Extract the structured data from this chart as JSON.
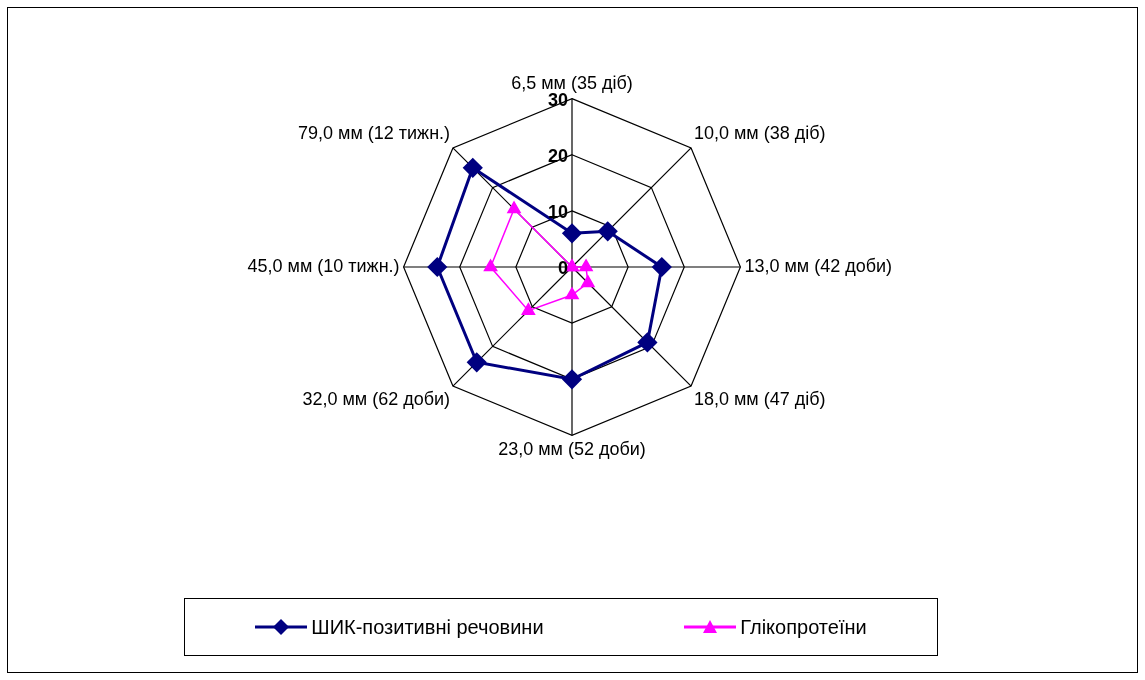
{
  "chart_data": {
    "type": "radar",
    "categories": [
      "6,5 мм (35 діб)",
      "10,0 мм (38 діб)",
      "13,0 мм (42 доби)",
      "18,0 мм (47 діб)",
      "23,0 мм (52 доби)",
      "32,0 мм (62 доби)",
      "45,0 мм (10 тижн.)",
      "79,0 мм (12 тижн.)"
    ],
    "series": [
      {
        "name": "ШИК-позитивні речовини",
        "color": "#000080",
        "marker": "diamond",
        "values": [
          6,
          9,
          16,
          19,
          20,
          24,
          24,
          25
        ]
      },
      {
        "name": "Глікопротеїни",
        "color": "#ff00ff",
        "marker": "triangle",
        "values": [
          0,
          0,
          2.5,
          4,
          5,
          11,
          14.5,
          14.6
        ]
      }
    ],
    "ylim": [
      0,
      30
    ],
    "yticks": [
      0,
      10,
      20,
      30
    ],
    "grid": true,
    "legend": "bottom"
  }
}
